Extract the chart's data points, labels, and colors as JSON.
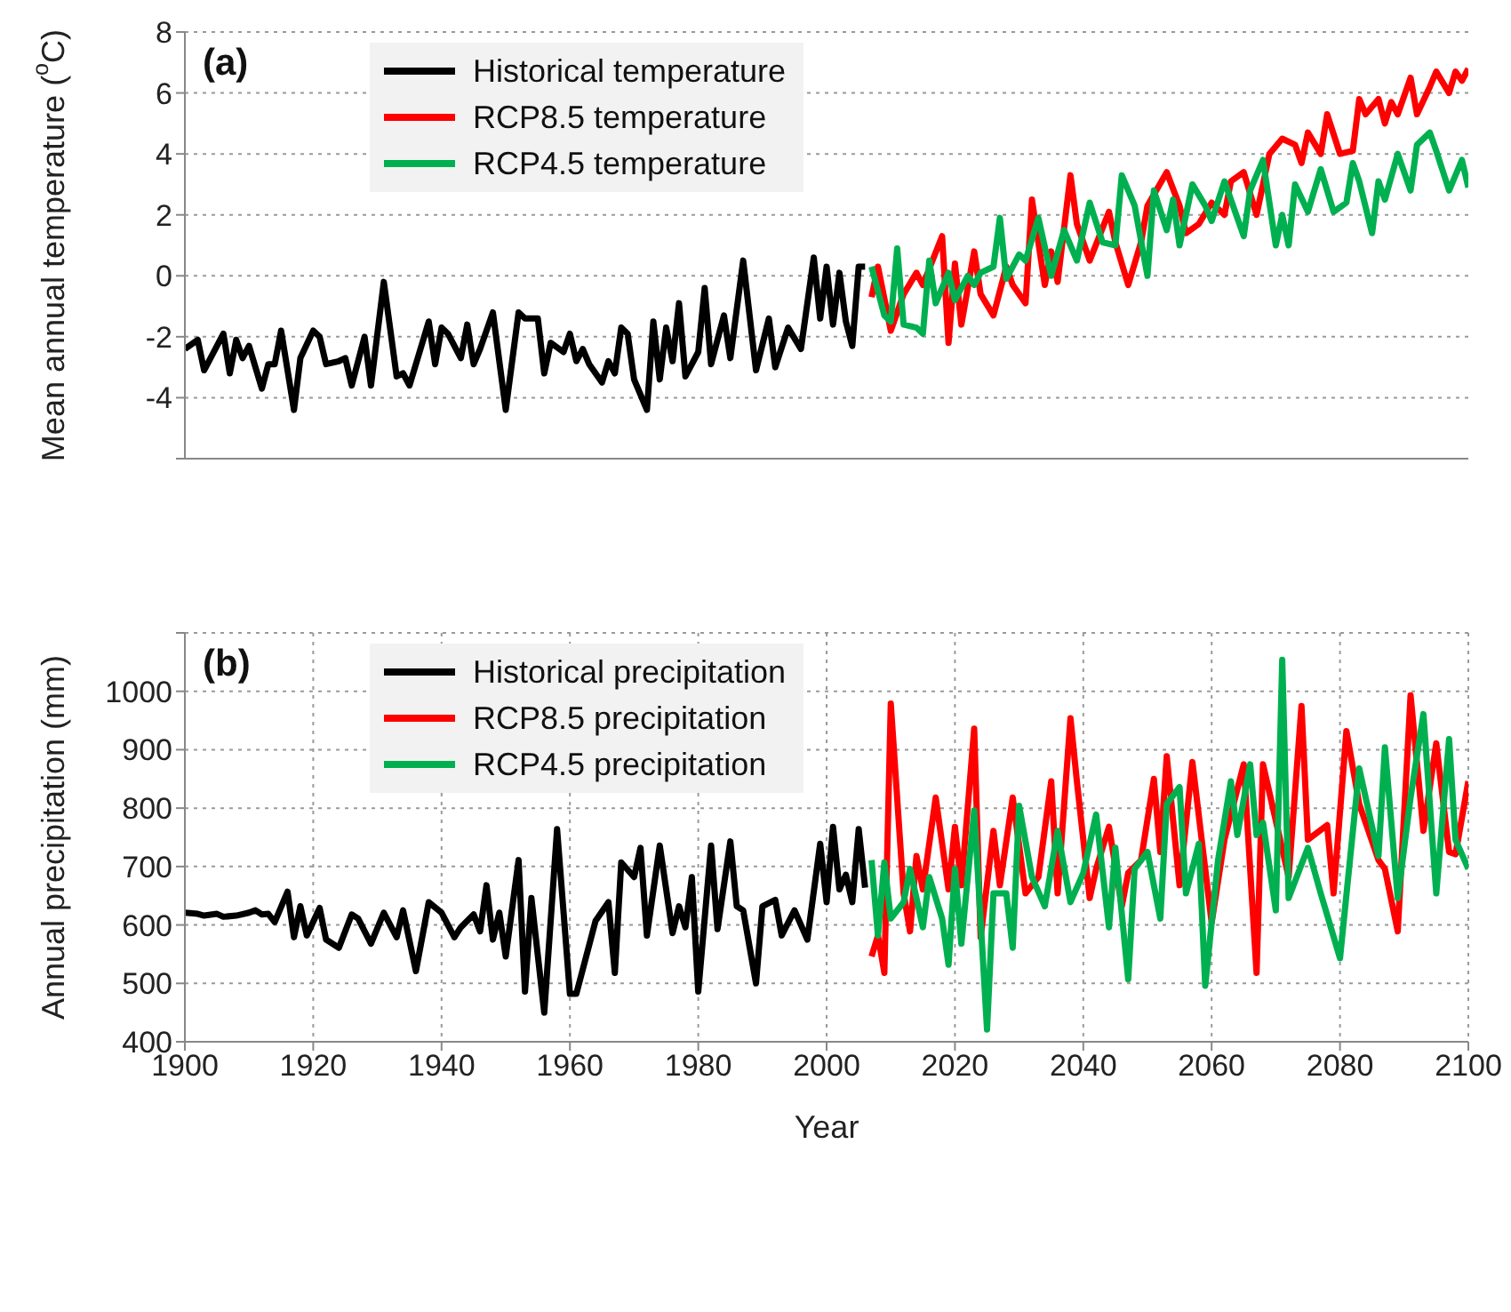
{
  "chart_data": [
    {
      "type": "line",
      "ylabel": "Mean annual temperature ($^{o}$C)",
      "annotations": [
        "(a)"
      ],
      "xlim": [
        1900,
        2100
      ],
      "xticks": [
        1900,
        1920,
        1940,
        1960,
        1980,
        2000,
        2020,
        2040,
        2060,
        2080,
        2100
      ],
      "ylim": [
        -6,
        8
      ],
      "yticks": [
        {
          "value": -6,
          "label": null
        },
        -4,
        -2,
        0,
        2,
        4,
        6,
        8
      ],
      "grid": true,
      "legend": "top left",
      "tick_labels": "y",
      "line_style": "solid",
      "series": [
        {
          "name": "Historical temperature",
          "color": "#000000",
          "x": [
            1900,
            1902,
            1903,
            1906,
            1907,
            1908,
            1909,
            1910,
            1912,
            1913,
            1914,
            1915,
            1917,
            1918,
            1920,
            1921,
            1922,
            1924,
            1925,
            1926,
            1928,
            1929,
            1931,
            1933,
            1934,
            1935,
            1938,
            1939,
            1940,
            1941,
            1943,
            1944,
            1945,
            1946,
            1948,
            1950,
            1952,
            1953,
            1955,
            1956,
            1957,
            1959,
            1960,
            1961,
            1962,
            1963,
            1965,
            1966,
            1967,
            1968,
            1969,
            1970,
            1972,
            1973,
            1974,
            1975,
            1976,
            1977,
            1978,
            1980,
            1981,
            1982,
            1984,
            1985,
            1987,
            1989,
            1991,
            1992,
            1994,
            1996,
            1998,
            1999,
            2000,
            2001,
            2002,
            2003,
            2004,
            2005,
            2006
          ],
          "values": [
            -2.4,
            -2.1,
            -3.1,
            -1.9,
            -3.2,
            -2.1,
            -2.7,
            -2.3,
            -3.7,
            -2.9,
            -2.9,
            -1.8,
            -4.4,
            -2.7,
            -1.8,
            -2.0,
            -2.9,
            -2.8,
            -2.7,
            -3.6,
            -2.0,
            -3.6,
            -0.2,
            -3.3,
            -3.2,
            -3.6,
            -1.5,
            -2.9,
            -1.7,
            -1.9,
            -2.7,
            -1.6,
            -2.9,
            -2.4,
            -1.2,
            -4.4,
            -1.2,
            -1.4,
            -1.4,
            -3.2,
            -2.2,
            -2.5,
            -1.9,
            -2.8,
            -2.4,
            -2.9,
            -3.5,
            -2.8,
            -3.2,
            -1.7,
            -1.9,
            -3.4,
            -4.4,
            -1.5,
            -3.4,
            -1.7,
            -2.8,
            -0.9,
            -3.3,
            -2.5,
            -0.4,
            -2.9,
            -1.3,
            -2.7,
            0.5,
            -3.1,
            -1.4,
            -3.0,
            -1.7,
            -2.4,
            0.6,
            -1.4,
            0.3,
            -1.6,
            0.1,
            -1.5,
            -2.3,
            0.3,
            0.3
          ]
        },
        {
          "name": "RCP8.5 temperature",
          "color": "#ff0000",
          "x": [
            2007,
            2008,
            2010,
            2012,
            2014,
            2015,
            2018,
            2019,
            2020,
            2021,
            2023,
            2024,
            2026,
            2028,
            2029,
            2031,
            2032,
            2034,
            2035,
            2036,
            2038,
            2039,
            2041,
            2044,
            2045,
            2047,
            2049,
            2050,
            2053,
            2055,
            2056,
            2058,
            2060,
            2062,
            2063,
            2065,
            2067,
            2069,
            2071,
            2073,
            2074,
            2075,
            2077,
            2078,
            2080,
            2082,
            2083,
            2084,
            2086,
            2087,
            2088,
            2089,
            2091,
            2092,
            2094,
            2095,
            2097,
            2098,
            2099,
            2100
          ],
          "values": [
            -0.7,
            0.3,
            -1.8,
            -0.6,
            0.1,
            -0.3,
            1.3,
            -2.2,
            0.4,
            -1.6,
            0.8,
            -0.6,
            -1.3,
            0.3,
            -0.3,
            -0.9,
            2.5,
            -0.3,
            0.8,
            -0.2,
            3.3,
            1.7,
            0.5,
            2.1,
            1.1,
            -0.3,
            1.1,
            2.3,
            3.4,
            2.3,
            1.4,
            1.7,
            2.4,
            2.0,
            3.1,
            3.4,
            2.0,
            4.0,
            4.5,
            4.3,
            3.7,
            4.7,
            4.0,
            5.3,
            4.0,
            4.1,
            5.8,
            5.3,
            5.8,
            5.0,
            5.7,
            5.3,
            6.5,
            5.3,
            6.2,
            6.7,
            6.0,
            6.7,
            6.4,
            6.8
          ]
        },
        {
          "name": "RCP4.5 temperature",
          "color": "#00b050",
          "x": [
            2007,
            2009,
            2010,
            2011,
            2012,
            2014,
            2015,
            2016,
            2017,
            2019,
            2020,
            2022,
            2023,
            2024,
            2026,
            2027,
            2028,
            2030,
            2031,
            2033,
            2035,
            2037,
            2039,
            2041,
            2043,
            2045,
            2046,
            2048,
            2050,
            2051,
            2053,
            2054,
            2055,
            2057,
            2059,
            2060,
            2062,
            2065,
            2066,
            2068,
            2070,
            2071,
            2072,
            2073,
            2075,
            2077,
            2079,
            2081,
            2082,
            2083,
            2085,
            2086,
            2087,
            2089,
            2091,
            2092,
            2094,
            2095,
            2097,
            2099,
            2100
          ],
          "values": [
            0.3,
            -1.3,
            -1.5,
            0.9,
            -1.6,
            -1.7,
            -1.9,
            0.5,
            -0.9,
            0.1,
            -0.8,
            0.0,
            -0.3,
            0.1,
            0.3,
            1.9,
            -0.1,
            0.7,
            0.5,
            1.9,
            0.0,
            1.5,
            0.5,
            2.4,
            1.1,
            1.0,
            3.3,
            2.3,
            0.0,
            2.8,
            1.5,
            2.5,
            1.0,
            3.0,
            2.3,
            1.8,
            3.1,
            1.3,
            2.8,
            3.8,
            1.0,
            2.0,
            1.0,
            3.0,
            2.1,
            3.5,
            2.1,
            2.4,
            3.7,
            3.1,
            1.4,
            3.1,
            2.5,
            4.0,
            2.8,
            4.3,
            4.7,
            4.1,
            2.8,
            3.8,
            2.9
          ]
        }
      ]
    },
    {
      "type": "line",
      "xlabel": "Year",
      "ylabel": "Annual precipitation (mm)",
      "annotations": [
        "(b)"
      ],
      "xlim": [
        1900,
        2100
      ],
      "xticks": [
        1900,
        1920,
        1940,
        1960,
        1980,
        2000,
        2020,
        2040,
        2060,
        2080,
        2100
      ],
      "ylim": [
        400,
        1100
      ],
      "yticks": [
        400,
        500,
        600,
        700,
        800,
        900,
        1000,
        {
          "value": 1100,
          "label": null
        }
      ],
      "grid": true,
      "legend": "top left",
      "line_style": "solid",
      "series": [
        {
          "name": "Historical precipitation",
          "color": "#000000",
          "x": [
            1900,
            1902,
            1903,
            1905,
            1906,
            1908,
            1910,
            1911,
            1912,
            1913,
            1914,
            1916,
            1917,
            1918,
            1919,
            1921,
            1922,
            1924,
            1926,
            1927,
            1929,
            1931,
            1933,
            1934,
            1936,
            1938,
            1940,
            1942,
            1943,
            1945,
            1946,
            1947,
            1948,
            1949,
            1950,
            1952,
            1953,
            1954,
            1956,
            1958,
            1960,
            1961,
            1964,
            1966,
            1967,
            1968,
            1970,
            1971,
            1972,
            1974,
            1976,
            1977,
            1978,
            1979,
            1980,
            1982,
            1983,
            1985,
            1986,
            1987,
            1989,
            1990,
            1992,
            1993,
            1995,
            1997,
            1999,
            2000,
            2001,
            2002,
            2003,
            2004,
            2005,
            2006
          ],
          "values": [
            621,
            619,
            616,
            619,
            614,
            616,
            621,
            625,
            618,
            619,
            605,
            657,
            579,
            632,
            582,
            629,
            575,
            561,
            618,
            611,
            568,
            621,
            579,
            625,
            521,
            639,
            621,
            579,
            596,
            618,
            589,
            668,
            575,
            621,
            546,
            711,
            486,
            646,
            450,
            764,
            482,
            482,
            607,
            639,
            518,
            707,
            682,
            732,
            582,
            736,
            586,
            632,
            596,
            682,
            486,
            736,
            593,
            743,
            632,
            625,
            500,
            632,
            643,
            582,
            625,
            575,
            739,
            639,
            768,
            661,
            686,
            639,
            764,
            664
          ]
        },
        {
          "name": "RCP8.5 precipitation",
          "color": "#ff0000",
          "x": [
            2007,
            2008,
            2009,
            2010,
            2012,
            2013,
            2014,
            2015,
            2017,
            2019,
            2020,
            2021,
            2023,
            2024,
            2026,
            2027,
            2029,
            2031,
            2033,
            2035,
            2036,
            2038,
            2039,
            2041,
            2042,
            2044,
            2046,
            2047,
            2049,
            2051,
            2052,
            2053,
            2055,
            2057,
            2060,
            2062,
            2065,
            2067,
            2068,
            2072,
            2074,
            2075,
            2078,
            2079,
            2081,
            2083,
            2086,
            2087,
            2089,
            2091,
            2093,
            2095,
            2097,
            2098,
            2100
          ],
          "values": [
            546,
            582,
            518,
            979,
            654,
            589,
            718,
            661,
            818,
            661,
            768,
            668,
            936,
            579,
            761,
            668,
            818,
            654,
            682,
            846,
            654,
            954,
            846,
            646,
            696,
            768,
            632,
            689,
            711,
            850,
            725,
            889,
            668,
            879,
            604,
            746,
            875,
            518,
            875,
            682,
            975,
            746,
            771,
            654,
            932,
            807,
            711,
            696,
            589,
            993,
            761,
            911,
            725,
            721,
            846
          ]
        },
        {
          "name": "RCP4.5 precipitation",
          "color": "#00b050",
          "x": [
            2007,
            2008,
            2009,
            2010,
            2012,
            2013,
            2015,
            2016,
            2018,
            2019,
            2020,
            2021,
            2023,
            2025,
            2026,
            2028,
            2029,
            2030,
            2032,
            2034,
            2036,
            2038,
            2040,
            2042,
            2044,
            2045,
            2047,
            2048,
            2050,
            2052,
            2053,
            2055,
            2056,
            2058,
            2059,
            2061,
            2063,
            2064,
            2066,
            2067,
            2068,
            2070,
            2071,
            2072,
            2075,
            2077,
            2080,
            2083,
            2086,
            2087,
            2089,
            2091,
            2093,
            2095,
            2097,
            2098,
            2100
          ],
          "values": [
            711,
            582,
            707,
            611,
            639,
            696,
            596,
            682,
            611,
            532,
            696,
            568,
            796,
            421,
            654,
            654,
            561,
            804,
            682,
            632,
            761,
            639,
            689,
            789,
            596,
            732,
            507,
            696,
            725,
            611,
            807,
            836,
            654,
            739,
            496,
            711,
            846,
            754,
            875,
            754,
            775,
            625,
            1054,
            646,
            732,
            654,
            543,
            868,
            718,
            904,
            646,
            818,
            961,
            654,
            918,
            746,
            696
          ]
        }
      ]
    }
  ]
}
